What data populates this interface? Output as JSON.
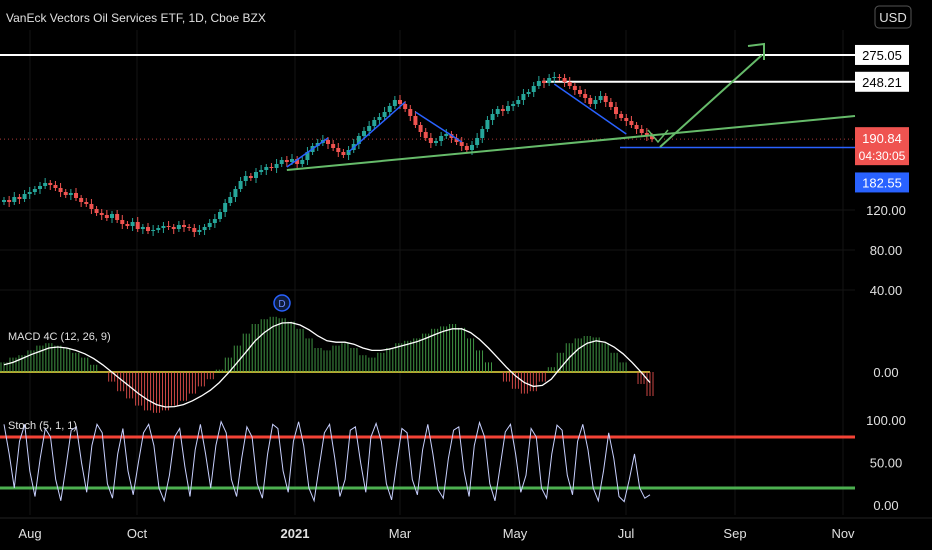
{
  "header": {
    "symbol_title": "VanEck Vectors Oil Services ETF, 1D, Cboe BZX",
    "currency": "USD"
  },
  "colors": {
    "up": "#26a69a",
    "down": "#ef5350",
    "macd_up": "#4caf50",
    "macd_down": "#ef5350",
    "signal_line": "#ffffff",
    "zero_line": "#f0e040",
    "stoch_line": "#c8d0ff",
    "stoch_upper": "#f44336",
    "stoch_lower": "#4caf50",
    "trend_green": "#66bb6a",
    "trend_blue": "#2962ff",
    "resistance": "#ffffff",
    "price_badge": "#ef5350",
    "support_badge": "#2962ff"
  },
  "chart_data": [
    {
      "type": "candlestick",
      "ylim": [
        20,
        300
      ],
      "y_ticks": [
        {
          "value": 275.05,
          "label": "275.05",
          "style": "badge-white"
        },
        {
          "value": 248.21,
          "label": "248.21",
          "style": "badge-white"
        },
        {
          "value": 120,
          "label": "120.00",
          "style": "plain"
        },
        {
          "value": 80,
          "label": "80.00",
          "style": "plain"
        },
        {
          "value": 40,
          "label": "40.00",
          "style": "plain"
        }
      ],
      "last_price": {
        "value": 190.84,
        "label": "190.84",
        "countdown": "04:30:05"
      },
      "support": {
        "value": 182.55,
        "label": "182.55"
      },
      "resistance_lines": [
        275.05,
        248.21
      ],
      "close_series": [
        130,
        128,
        133,
        131,
        136,
        138,
        141,
        144,
        147,
        145,
        142,
        138,
        135,
        137,
        132,
        128,
        126,
        121,
        117,
        115,
        112,
        116,
        110,
        106,
        104,
        108,
        101,
        103,
        99,
        100,
        102,
        104,
        103,
        101,
        105,
        103,
        102,
        98,
        100,
        103,
        107,
        111,
        118,
        127,
        133,
        141,
        149,
        154,
        152,
        158,
        160,
        163,
        162,
        166,
        170,
        168,
        171,
        166,
        170,
        178,
        184,
        187,
        190,
        186,
        182,
        178,
        175,
        180,
        186,
        194,
        199,
        204,
        210,
        213,
        218,
        224,
        230,
        226,
        221,
        214,
        205,
        198,
        192,
        187,
        189,
        194,
        196,
        192,
        188,
        184,
        180,
        185,
        192,
        201,
        210,
        216,
        221,
        219,
        224,
        226,
        230,
        236,
        238,
        244,
        249,
        247,
        252,
        253,
        252,
        248,
        244,
        240,
        236,
        232,
        226,
        230,
        234,
        228,
        223,
        216,
        212,
        209,
        205,
        201,
        197,
        194,
        190.84
      ],
      "x_tick_labels": [
        "Aug",
        "Oct",
        "2021",
        "Mar",
        "May",
        "Jul",
        "Sep",
        "Nov"
      ],
      "x_tick_bold": "2021",
      "event_marker": "D"
    },
    {
      "type": "area",
      "title": "MACD 4C (12, 26, 9)",
      "ylim": [
        -1,
        1
      ],
      "y_ticks": [
        {
          "value": 0,
          "label": "0.00"
        }
      ],
      "histogram": [
        0.2,
        0.3,
        0.35,
        0.45,
        0.55,
        0.6,
        0.55,
        0.5,
        0.4,
        0.3,
        0.15,
        0.0,
        -0.2,
        -0.4,
        -0.55,
        -0.7,
        -0.8,
        -0.85,
        -0.8,
        -0.7,
        -0.6,
        -0.45,
        -0.3,
        -0.15,
        0.05,
        0.3,
        0.55,
        0.8,
        1.0,
        1.1,
        1.15,
        1.12,
        1.05,
        0.9,
        0.7,
        0.5,
        0.45,
        0.55,
        0.6,
        0.5,
        0.35,
        0.3,
        0.4,
        0.5,
        0.6,
        0.65,
        0.7,
        0.8,
        0.9,
        0.95,
        1.0,
        0.92,
        0.7,
        0.45,
        0.2,
        0.0,
        -0.2,
        -0.35,
        -0.45,
        -0.4,
        -0.2,
        0.1,
        0.4,
        0.6,
        0.7,
        0.75,
        0.72,
        0.6,
        0.4,
        0.2,
        0.0,
        -0.25,
        -0.5
      ],
      "signal": [
        0.15,
        0.2,
        0.28,
        0.36,
        0.43,
        0.5,
        0.52,
        0.5,
        0.45,
        0.38,
        0.28,
        0.15,
        0.0,
        -0.15,
        -0.3,
        -0.45,
        -0.58,
        -0.68,
        -0.73,
        -0.72,
        -0.68,
        -0.6,
        -0.5,
        -0.38,
        -0.22,
        -0.02,
        0.2,
        0.42,
        0.65,
        0.82,
        0.95,
        1.02,
        1.03,
        0.98,
        0.88,
        0.75,
        0.65,
        0.62,
        0.62,
        0.58,
        0.5,
        0.45,
        0.45,
        0.48,
        0.53,
        0.58,
        0.63,
        0.7,
        0.78,
        0.85,
        0.9,
        0.9,
        0.82,
        0.68,
        0.5,
        0.3,
        0.1,
        -0.08,
        -0.22,
        -0.3,
        -0.28,
        -0.15,
        0.08,
        0.3,
        0.48,
        0.6,
        0.65,
        0.62,
        0.52,
        0.38,
        0.2,
        0.0,
        -0.22
      ]
    },
    {
      "type": "line",
      "title": "Stoch (5, 1, 1)",
      "ylim": [
        0,
        100
      ],
      "y_ticks": [
        {
          "value": 100,
          "label": "100.00"
        },
        {
          "value": 50,
          "label": "50.00"
        },
        {
          "value": 0,
          "label": "0.00"
        }
      ],
      "upper_band": 80,
      "lower_band": 20,
      "values": [
        95,
        60,
        20,
        75,
        95,
        40,
        10,
        55,
        90,
        80,
        30,
        5,
        45,
        88,
        92,
        50,
        15,
        70,
        95,
        85,
        25,
        8,
        60,
        90,
        40,
        12,
        50,
        85,
        95,
        70,
        20,
        5,
        35,
        80,
        90,
        45,
        10,
        65,
        95,
        60,
        20,
        70,
        98,
        85,
        30,
        10,
        55,
        92,
        80,
        25,
        8,
        60,
        95,
        90,
        40,
        15,
        75,
        98,
        70,
        20,
        5,
        45,
        85,
        95,
        55,
        10,
        30,
        88,
        92,
        50,
        15,
        80,
        96,
        75,
        25,
        6,
        50,
        90,
        85,
        30,
        12,
        65,
        95,
        60,
        18,
        8,
        55,
        88,
        92,
        40,
        10,
        70,
        97,
        80,
        25,
        5,
        45,
        86,
        95,
        60,
        15,
        35,
        90,
        80,
        20,
        8,
        60,
        94,
        88,
        35,
        12,
        75,
        95,
        65,
        20,
        5,
        40,
        85,
        55,
        10,
        4,
        30,
        60,
        20,
        8,
        12
      ]
    }
  ]
}
